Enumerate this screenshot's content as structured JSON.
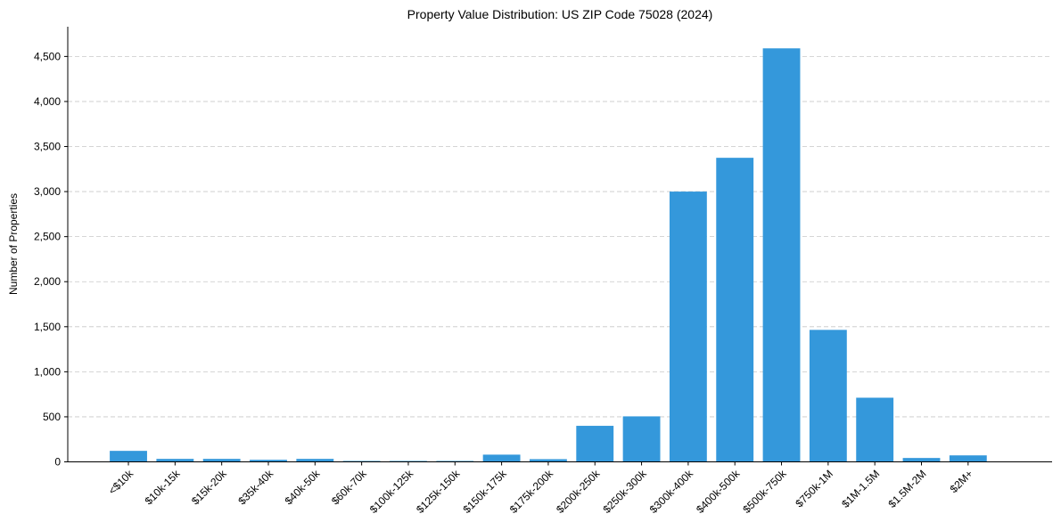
{
  "chart_data": {
    "type": "bar",
    "title": "Property Value Distribution: US ZIP Code 75028 (2024)",
    "xlabel": "",
    "ylabel": "Number of Properties",
    "categories": [
      "<$10k",
      "$10k-15k",
      "$15k-20k",
      "$35k-40k",
      "$40k-50k",
      "$60k-70k",
      "$100k-125k",
      "$125k-150k",
      "$150k-175k",
      "$175k-200k",
      "$200k-250k",
      "$250k-300k",
      "$300k-400k",
      "$400k-500k",
      "$500k-750k",
      "$750k-1M",
      "$1M-1.5M",
      "$1.5M-2M",
      "$2M+"
    ],
    "values": [
      122,
      33,
      33,
      23,
      33,
      10,
      10,
      10,
      80,
      30,
      400,
      505,
      3000,
      3375,
      4590,
      1465,
      712,
      43,
      72
    ],
    "ylim": [
      0,
      4830
    ],
    "yticks": [
      0,
      500,
      1000,
      1500,
      2000,
      2500,
      3000,
      3500,
      4000,
      4500
    ],
    "ytick_labels": [
      "0",
      "500",
      "1,000",
      "1,500",
      "2,000",
      "2,500",
      "3,000",
      "3,500",
      "4,000",
      "4,500"
    ],
    "grid": "y-dashed",
    "bar_color": "#3498db"
  }
}
